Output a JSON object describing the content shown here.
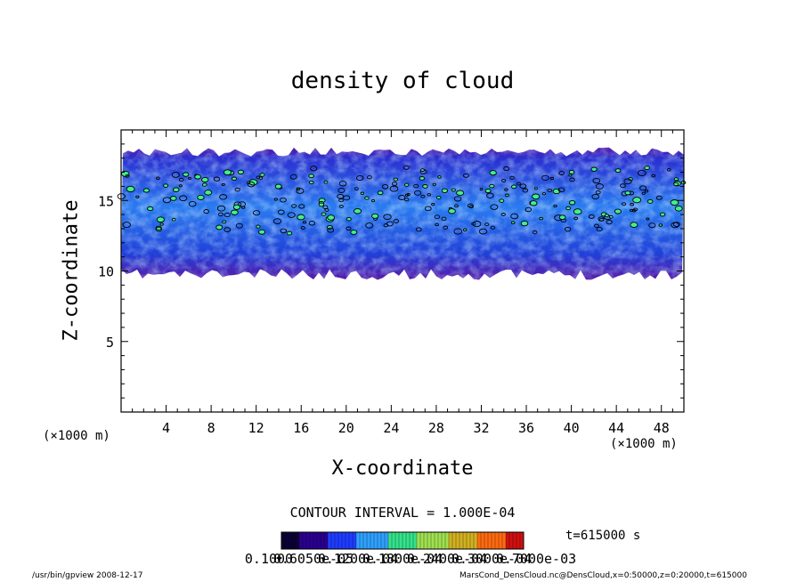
{
  "chart_data": {
    "type": "heatmap",
    "title": "density of cloud",
    "xlabel": "X-coordinate",
    "ylabel": "Z-coordinate",
    "x_unit": "(×1000 m)",
    "xlim": [
      0,
      50
    ],
    "ylim": [
      0,
      20
    ],
    "x_ticks": [
      4,
      8,
      12,
      16,
      20,
      24,
      28,
      32,
      36,
      40,
      44,
      48
    ],
    "y_ticks": [
      5,
      10,
      15
    ],
    "contour_interval": "CONTOUR INTERVAL = 1.000E-04",
    "colorbar_labels": [
      "0.1000",
      "0.6050e-05",
      "0.1200e-04",
      "0.1800e-04",
      "0.2400e-04",
      "0.3000e-04",
      "0.7000e-03"
    ],
    "colorbar_colors": [
      "#0a0035",
      "#2a0090",
      "#1f3cff",
      "#2fa0ff",
      "#34e28a",
      "#9fe050",
      "#d1b020",
      "#ff6a10",
      "#d01010"
    ],
    "time_label": "t=615000 s",
    "cloud_layer_base_z": 10,
    "cloud_layer_top_z": 18.5,
    "notes": [
      "(×1000 m)",
      "(×1000 m)"
    ]
  },
  "footer": {
    "left": "/usr/bin/gpview   2008-12-17",
    "right": "MarsCond_DensCloud.nc@DensCloud,x=0:50000,z=0:20000,t=615000"
  }
}
